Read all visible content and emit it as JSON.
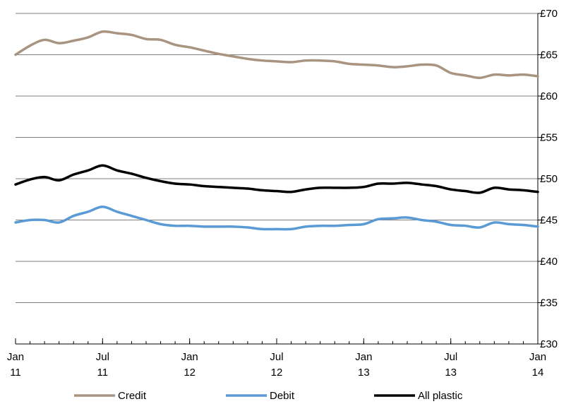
{
  "chart_data": {
    "type": "line",
    "title": "",
    "xlabel": "",
    "ylabel": "",
    "ylim": [
      30,
      70
    ],
    "yticks": [
      30,
      35,
      40,
      45,
      50,
      55,
      60,
      65,
      70
    ],
    "ytick_labels": [
      "£30",
      "£35",
      "£40",
      "£45",
      "£50",
      "£55",
      "£60",
      "£65",
      "£70"
    ],
    "x_range_months": [
      "2011-01",
      "2014-01"
    ],
    "xticks": [
      {
        "month": "2011-01",
        "line1": "Jan",
        "line2": "11"
      },
      {
        "month": "2011-07",
        "line1": "Jul",
        "line2": "11"
      },
      {
        "month": "2012-01",
        "line1": "Jan",
        "line2": "12"
      },
      {
        "month": "2012-07",
        "line1": "Jul",
        "line2": "12"
      },
      {
        "month": "2013-01",
        "line1": "Jan",
        "line2": "13"
      },
      {
        "month": "2013-07",
        "line1": "Jul",
        "line2": "13"
      },
      {
        "month": "2014-01",
        "line1": "Jan",
        "line2": "14"
      }
    ],
    "grid": "horizontal",
    "y_axis_position": "right",
    "legend_position": "bottom",
    "x": [
      "2011-01",
      "2011-02",
      "2011-03",
      "2011-04",
      "2011-05",
      "2011-06",
      "2011-07",
      "2011-08",
      "2011-09",
      "2011-10",
      "2011-11",
      "2011-12",
      "2012-01",
      "2012-02",
      "2012-03",
      "2012-04",
      "2012-05",
      "2012-06",
      "2012-07",
      "2012-08",
      "2012-09",
      "2012-10",
      "2012-11",
      "2012-12",
      "2013-01",
      "2013-02",
      "2013-03",
      "2013-04",
      "2013-05",
      "2013-06",
      "2013-07",
      "2013-08",
      "2013-09",
      "2013-10",
      "2013-11",
      "2013-12",
      "2014-01"
    ],
    "series": [
      {
        "name": "Credit",
        "color": "#a89480",
        "values": [
          65.0,
          66.1,
          66.8,
          66.4,
          66.7,
          67.1,
          67.8,
          67.6,
          67.4,
          66.9,
          66.8,
          66.2,
          65.9,
          65.5,
          65.1,
          64.8,
          64.5,
          64.3,
          64.2,
          64.1,
          64.3,
          64.3,
          64.2,
          63.9,
          63.8,
          63.7,
          63.5,
          63.6,
          63.8,
          63.7,
          62.8,
          62.5,
          62.2,
          62.6,
          62.5,
          62.6,
          62.4
        ]
      },
      {
        "name": "Debit",
        "color": "#5b9bd5",
        "values": [
          44.7,
          45.0,
          45.0,
          44.7,
          45.5,
          46.0,
          46.6,
          46.0,
          45.5,
          45.0,
          44.5,
          44.3,
          44.3,
          44.2,
          44.2,
          44.2,
          44.1,
          43.9,
          43.9,
          43.9,
          44.2,
          44.3,
          44.3,
          44.4,
          44.5,
          45.1,
          45.2,
          45.3,
          45.0,
          44.8,
          44.4,
          44.3,
          44.1,
          44.7,
          44.5,
          44.4,
          44.2
        ]
      },
      {
        "name": "All plastic",
        "color": "#000000",
        "values": [
          49.3,
          49.9,
          50.2,
          49.8,
          50.5,
          51.0,
          51.6,
          51.0,
          50.6,
          50.1,
          49.7,
          49.4,
          49.3,
          49.1,
          49.0,
          48.9,
          48.8,
          48.6,
          48.5,
          48.4,
          48.7,
          48.9,
          48.9,
          48.9,
          49.0,
          49.4,
          49.4,
          49.5,
          49.3,
          49.1,
          48.7,
          48.5,
          48.3,
          48.9,
          48.7,
          48.6,
          48.4
        ]
      }
    ]
  }
}
